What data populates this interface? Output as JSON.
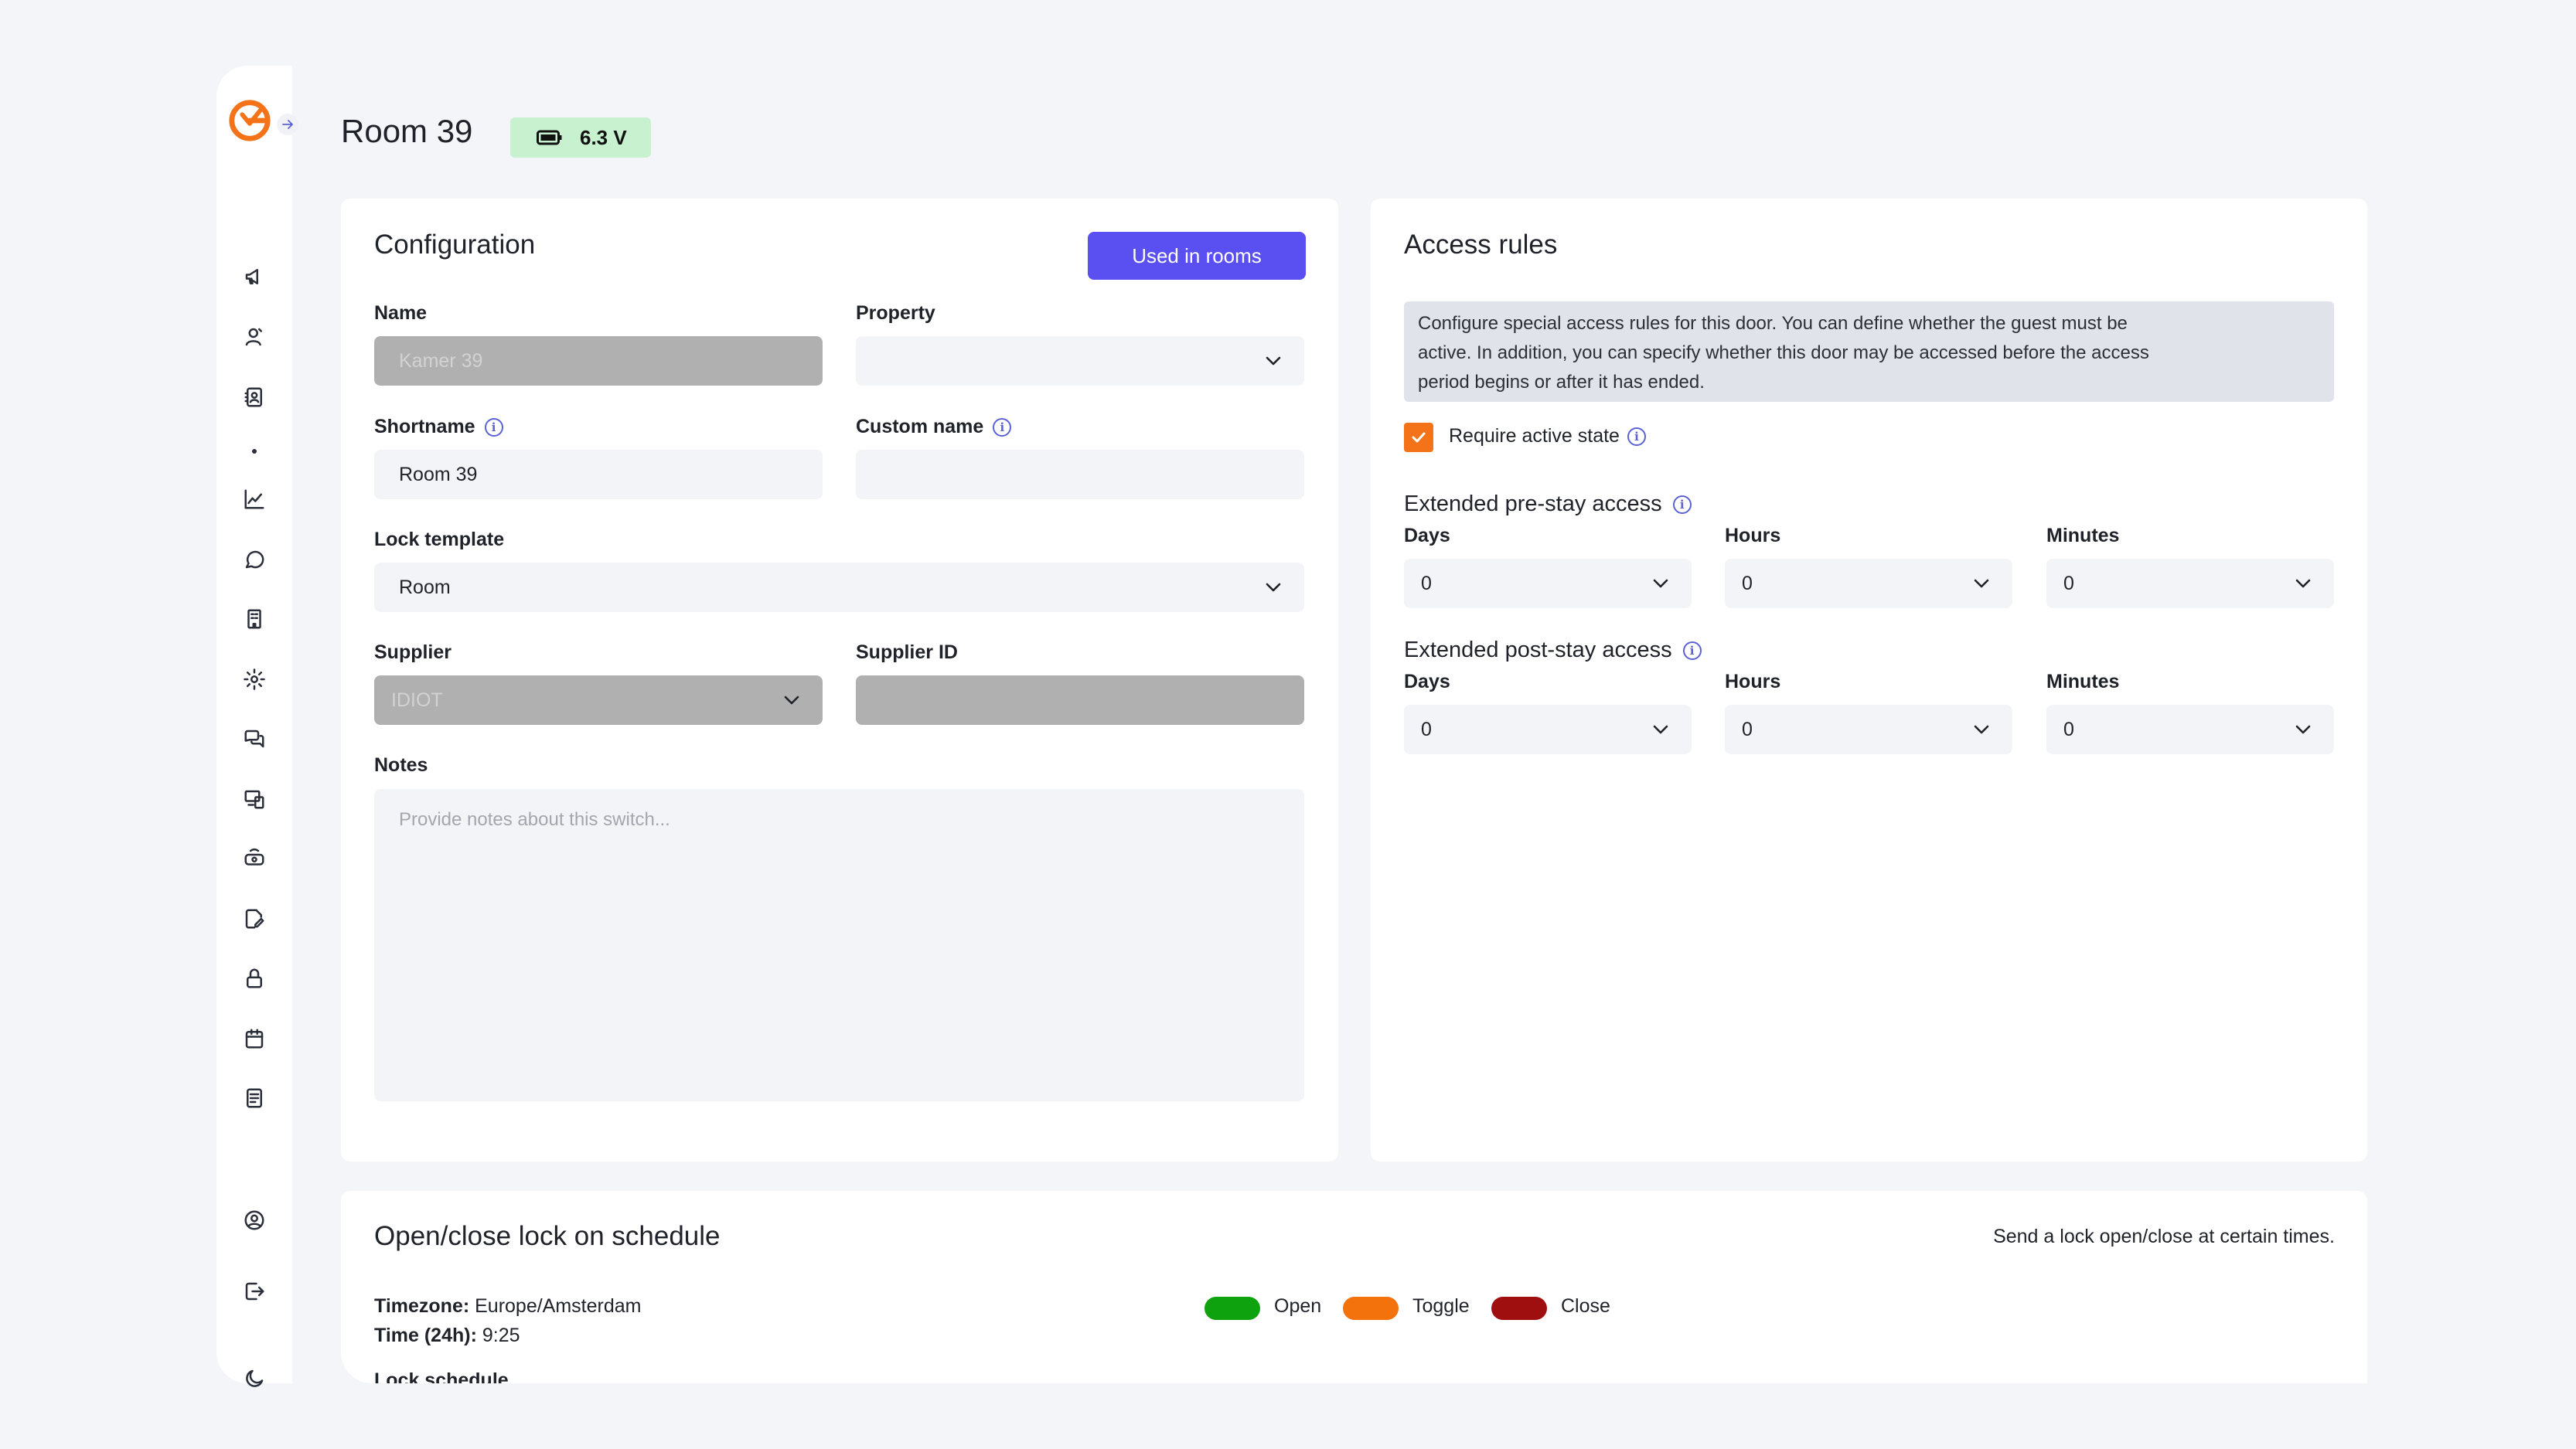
{
  "header": {
    "title": "Room 39",
    "battery": "6.3 V",
    "battery_color": "#c7f1cf"
  },
  "sidebar": {
    "icons": [
      "megaphone-icon",
      "guests-icon",
      "contacts-icon",
      "chart-icon",
      "chat-icon",
      "building-icon",
      "gear-icon",
      "conversations-icon",
      "devices-icon",
      "router-icon",
      "edit-document-icon",
      "lock-icon",
      "calendar-icon",
      "notes-icon",
      "account-icon",
      "logout-icon",
      "dark-mode-icon"
    ]
  },
  "configuration": {
    "title": "Configuration",
    "used_in_rooms": "Used in rooms",
    "name_label": "Name",
    "name_value": "Kamer 39",
    "property_label": "Property",
    "property_value": "",
    "shortname_label": "Shortname",
    "shortname_value": "Room 39",
    "custom_name_label": "Custom name",
    "custom_name_value": "",
    "lock_template_label": "Lock template",
    "lock_template_value": "Room",
    "supplier_label": "Supplier",
    "supplier_value": "IDIOT",
    "supplier_id_label": "Supplier ID",
    "supplier_id_value": "",
    "notes_label": "Notes",
    "notes_placeholder": "Provide notes about this switch..."
  },
  "access_rules": {
    "title": "Access rules",
    "notice_line1": "Configure special access rules for this door. You can define whether the guest must be",
    "notice_line2": "active. In addition, you can specify whether this door may be accessed before the access",
    "notice_line3": "period begins or after it has ended.",
    "require_active_label": "Require active state",
    "require_active_checked": true,
    "pre_stay": {
      "title": "Extended pre-stay access",
      "days_label": "Days",
      "days": "0",
      "hours_label": "Hours",
      "hours": "0",
      "minutes_label": "Minutes",
      "minutes": "0"
    },
    "post_stay": {
      "title": "Extended post-stay access",
      "days_label": "Days",
      "days": "0",
      "hours_label": "Hours",
      "hours": "0",
      "minutes_label": "Minutes",
      "minutes": "0"
    }
  },
  "schedule": {
    "title": "Open/close lock on schedule",
    "subtitle": "Send a lock open/close at certain times.",
    "timezone_label": "Timezone:",
    "timezone_value": "Europe/Amsterdam",
    "time_label": "Time (24h):",
    "time_value": "9:25",
    "legend": [
      {
        "label": "Open",
        "color": "#0ea30e"
      },
      {
        "label": "Toggle",
        "color": "#f4720c"
      },
      {
        "label": "Close",
        "color": "#a00f0f"
      }
    ],
    "cut_text": "Lock schedule"
  }
}
